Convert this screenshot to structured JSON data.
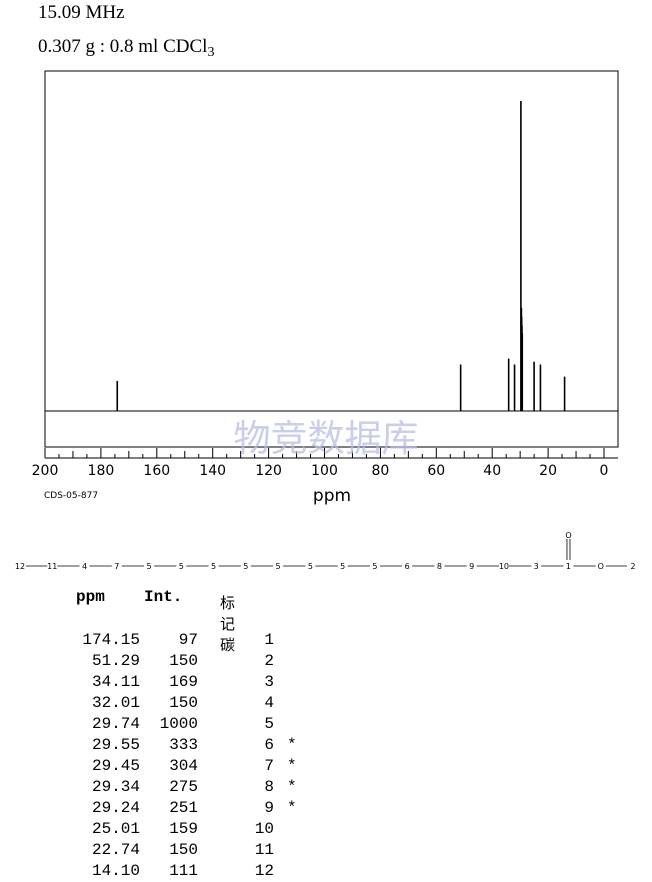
{
  "header": {
    "frequency": "15.09 MHz",
    "sample_prefix": "0.307 g : 0.8 ml CDCl",
    "sample_sub": "3"
  },
  "chart_data": {
    "type": "line",
    "title": "",
    "xlabel": "ppm",
    "ylabel": "",
    "xlim": [
      200,
      0
    ],
    "x_reversed": true,
    "xticks": [
      200,
      180,
      160,
      140,
      120,
      100,
      80,
      60,
      40,
      20,
      0
    ],
    "peaks": [
      {
        "ppm": 174.15,
        "intensity": 97
      },
      {
        "ppm": 51.29,
        "intensity": 150
      },
      {
        "ppm": 34.11,
        "intensity": 169
      },
      {
        "ppm": 32.01,
        "intensity": 150
      },
      {
        "ppm": 29.74,
        "intensity": 1000
      },
      {
        "ppm": 29.55,
        "intensity": 333
      },
      {
        "ppm": 29.45,
        "intensity": 304
      },
      {
        "ppm": 29.34,
        "intensity": 275
      },
      {
        "ppm": 29.24,
        "intensity": 251
      },
      {
        "ppm": 25.01,
        "intensity": 159
      },
      {
        "ppm": 22.74,
        "intensity": 150
      },
      {
        "ppm": 14.1,
        "intensity": 111
      }
    ]
  },
  "code": "CDS-05-877",
  "watermark": "物竞数据库",
  "structure": {
    "labels": [
      "12",
      "11",
      "4",
      "7",
      "5",
      "5",
      "5",
      "5",
      "5",
      "5",
      "5",
      "5",
      "6",
      "8",
      "9",
      "10",
      "3",
      "1",
      "O",
      "2"
    ],
    "carbonyl_o": "O"
  },
  "table": {
    "headers": {
      "ppm": "ppm",
      "int": "Int.",
      "carbon": "标记碳"
    },
    "rows": [
      {
        "ppm": "174.15",
        "int": "97",
        "carbon": "1",
        "mark": ""
      },
      {
        "ppm": "51.29",
        "int": "150",
        "carbon": "2",
        "mark": ""
      },
      {
        "ppm": "34.11",
        "int": "169",
        "carbon": "3",
        "mark": ""
      },
      {
        "ppm": "32.01",
        "int": "150",
        "carbon": "4",
        "mark": ""
      },
      {
        "ppm": "29.74",
        "int": "1000",
        "carbon": "5",
        "mark": ""
      },
      {
        "ppm": "29.55",
        "int": "333",
        "carbon": "6",
        "mark": "*"
      },
      {
        "ppm": "29.45",
        "int": "304",
        "carbon": "7",
        "mark": "*"
      },
      {
        "ppm": "29.34",
        "int": "275",
        "carbon": "8",
        "mark": "*"
      },
      {
        "ppm": "29.24",
        "int": "251",
        "carbon": "9",
        "mark": "*"
      },
      {
        "ppm": "25.01",
        "int": "159",
        "carbon": "10",
        "mark": ""
      },
      {
        "ppm": "22.74",
        "int": "150",
        "carbon": "11",
        "mark": ""
      },
      {
        "ppm": "14.10",
        "int": "111",
        "carbon": "12",
        "mark": ""
      }
    ]
  }
}
